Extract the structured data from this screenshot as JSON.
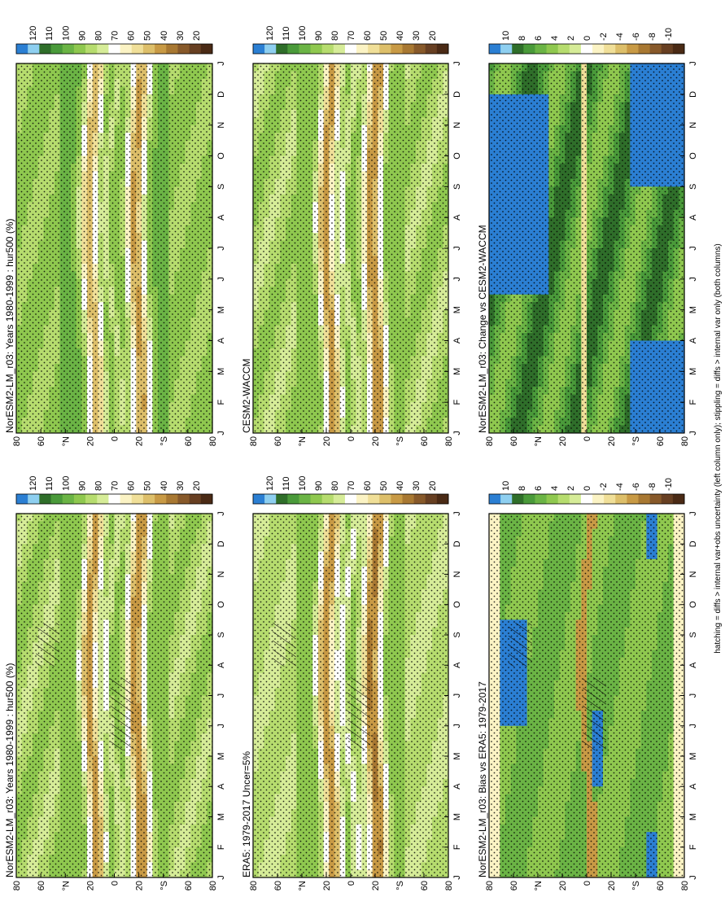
{
  "figure": {
    "footnote": "hatching = diffs > internal var+obs uncertainty (left column only); stippling = diffs > internal var only (both columns)"
  },
  "colors": {
    "abs_scale": [
      "#2b7fd3",
      "#8ecff0",
      "#2f6e2a",
      "#4a9a3a",
      "#6bb445",
      "#8fc84f",
      "#b6dc6e",
      "#d6ec98",
      "#ffffff",
      "#fbf3c4",
      "#f0df98",
      "#ddbf6a",
      "#c89a45",
      "#a87832",
      "#87592a",
      "#673f22",
      "#4a2a15"
    ],
    "diff_scale": [
      "#2b7fd3",
      "#8ecff0",
      "#2f6e2a",
      "#4a9a3a",
      "#6bb445",
      "#8fc84f",
      "#b6dc6e",
      "#d6ec98",
      "#ffffff",
      "#fbf3c4",
      "#f0df98",
      "#ddbf6a",
      "#c89a45",
      "#a87832",
      "#87592a",
      "#673f22",
      "#4a2a15"
    ]
  },
  "chart_data": [
    {
      "type": "heatmap",
      "panel": "top-left",
      "title": "NorESM2-LM_r03: Years 1980-1999 : hur500 (%)",
      "x_ticks": [
        "J",
        "F",
        "M",
        "A",
        "M",
        "J",
        "J",
        "A",
        "S",
        "O",
        "N",
        "D",
        "J"
      ],
      "y_ticks": [
        "80",
        "60",
        "°N",
        "20",
        "0",
        "20",
        "°S",
        "60",
        "80"
      ],
      "colorbar_ticks": [
        "120",
        "110",
        "100",
        "90",
        "80",
        "70",
        "60",
        "50",
        "40",
        "30",
        "20"
      ],
      "zlim": [
        20,
        120
      ],
      "grid": false
    },
    {
      "type": "heatmap",
      "panel": "top-right",
      "title": "NorESM2-LM_r03: Years 1980-1999 : hur500 (%)",
      "x_ticks": [
        "J",
        "F",
        "M",
        "A",
        "M",
        "J",
        "J",
        "A",
        "S",
        "O",
        "N",
        "D",
        "J"
      ],
      "y_ticks": [
        "80",
        "60",
        "°N",
        "20",
        "0",
        "20",
        "°S",
        "60",
        "80"
      ],
      "colorbar_ticks": [
        "120",
        "110",
        "100",
        "90",
        "80",
        "70",
        "60",
        "50",
        "40",
        "30",
        "20"
      ],
      "zlim": [
        20,
        120
      ],
      "grid": false
    },
    {
      "type": "heatmap",
      "panel": "middle-left",
      "title": "ERA5: 1979-2017 Uncer=5%",
      "x_ticks": [
        "J",
        "F",
        "M",
        "A",
        "M",
        "J",
        "J",
        "A",
        "S",
        "O",
        "N",
        "D",
        "J"
      ],
      "y_ticks": [
        "80",
        "60",
        "°N",
        "20",
        "0",
        "20",
        "°S",
        "60",
        "80"
      ],
      "colorbar_ticks": [
        "120",
        "110",
        "100",
        "90",
        "80",
        "70",
        "60",
        "50",
        "40",
        "30",
        "20"
      ],
      "zlim": [
        20,
        120
      ],
      "grid": false
    },
    {
      "type": "heatmap",
      "panel": "middle-right",
      "title": "CESM2-WACCM",
      "x_ticks": [
        "J",
        "F",
        "M",
        "A",
        "M",
        "J",
        "J",
        "A",
        "S",
        "O",
        "N",
        "D",
        "J"
      ],
      "y_ticks": [
        "80",
        "60",
        "°N",
        "20",
        "0",
        "20",
        "°S",
        "60",
        "80"
      ],
      "colorbar_ticks": [
        "120",
        "110",
        "100",
        "90",
        "80",
        "70",
        "60",
        "50",
        "40",
        "30",
        "20"
      ],
      "zlim": [
        20,
        120
      ],
      "grid": false
    },
    {
      "type": "heatmap",
      "panel": "bottom-left",
      "title": "NorESM2-LM_r03: Bias vs ERA5: 1979-2017",
      "x_ticks": [
        "J",
        "F",
        "M",
        "A",
        "M",
        "J",
        "J",
        "A",
        "S",
        "O",
        "N",
        "D",
        "J"
      ],
      "y_ticks": [
        "80",
        "60",
        "°N",
        "20",
        "0",
        "20",
        "°S",
        "60",
        "80"
      ],
      "colorbar_ticks": [
        "10",
        "8",
        "6",
        "4",
        "2",
        "0",
        "-2",
        "-4",
        "-6",
        "-8",
        "-10"
      ],
      "zlim": [
        -10,
        10
      ],
      "grid": false
    },
    {
      "type": "heatmap",
      "panel": "bottom-right",
      "title": "NorESM2-LM_r03: Change vs CESM2-WACCM",
      "x_ticks": [
        "J",
        "F",
        "M",
        "A",
        "M",
        "J",
        "J",
        "A",
        "S",
        "O",
        "N",
        "D",
        "J"
      ],
      "y_ticks": [
        "80",
        "60",
        "°N",
        "20",
        "0",
        "20",
        "°S",
        "60",
        "80"
      ],
      "colorbar_ticks": [
        "10",
        "8",
        "6",
        "4",
        "2",
        "0",
        "-2",
        "-4",
        "-6",
        "-8",
        "-10"
      ],
      "zlim": [
        -10,
        10
      ],
      "grid": false
    }
  ]
}
